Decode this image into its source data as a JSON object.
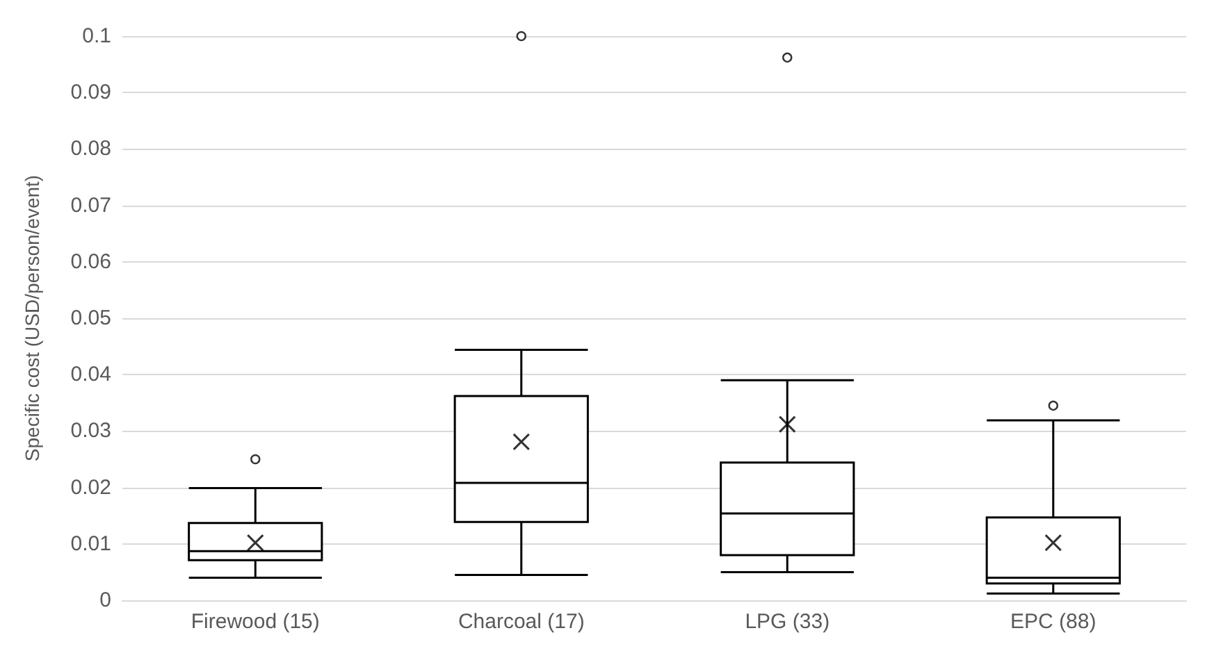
{
  "chart_data": {
    "type": "box",
    "ylabel": "Specific cost (USD/person/event)",
    "categories": [
      "Firewood (15)",
      "Charcoal (17)",
      "LPG (33)",
      "EPC (88)"
    ],
    "boxes": [
      {
        "low": 0.004,
        "q1": 0.0071,
        "median": 0.0087,
        "q3": 0.0137,
        "high": 0.0199,
        "mean": 0.0102,
        "outliers": [
          0.025
        ]
      },
      {
        "low": 0.0045,
        "q1": 0.0139,
        "median": 0.0208,
        "q3": 0.0362,
        "high": 0.0444,
        "mean": 0.0281,
        "outliers": [
          0.1
        ]
      },
      {
        "low": 0.005,
        "q1": 0.008,
        "median": 0.0154,
        "q3": 0.0244,
        "high": 0.039,
        "mean": 0.0312,
        "outliers": [
          0.0962
        ]
      },
      {
        "low": 0.0012,
        "q1": 0.003,
        "median": 0.004,
        "q3": 0.0147,
        "high": 0.0319,
        "mean": 0.0102,
        "outliers": [
          0.0345
        ]
      }
    ],
    "color": "#000000",
    "ylim": [
      0,
      0.1
    ],
    "yticks": [
      0,
      0.01,
      0.02,
      0.03,
      0.04,
      0.05,
      0.06,
      0.07,
      0.08,
      0.09,
      0.1
    ],
    "grid": "y",
    "marker": "cross"
  }
}
